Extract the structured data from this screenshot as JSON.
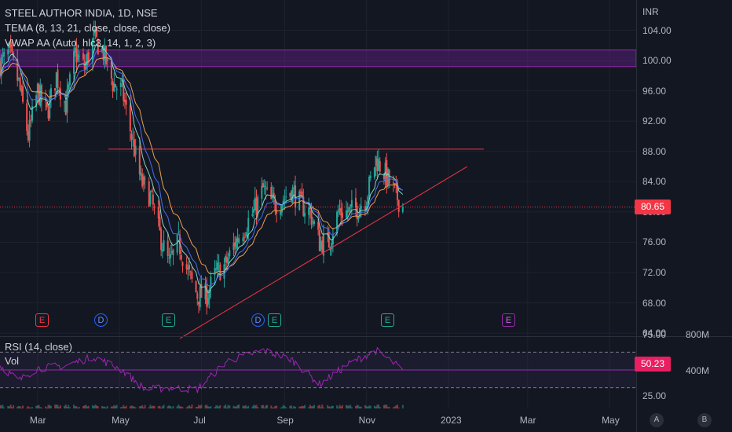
{
  "legend": {
    "symbol_line": "STEEL AUTHOR INDIA, 1D, NSE",
    "tema_line": "TEMA (8, 13, 21, close, close, close)",
    "vwap_line": "VWAP AA (Auto, hlc3, 14, 1, 2, 3)",
    "rsi_line": "RSI (14, close)",
    "vol_line": "Vol"
  },
  "currency": "INR",
  "price_axis": {
    "ticks": [
      "104.00",
      "100.00",
      "96.00",
      "92.00",
      "88.00",
      "84.00",
      "80.00",
      "76.00",
      "72.00",
      "68.00",
      "64.00"
    ],
    "min": 63.6,
    "max": 108.0
  },
  "last_price": "80.65",
  "rsi_axis": {
    "ticks": [
      "75.00",
      "25.00"
    ],
    "value": "50.23"
  },
  "volume_axis": {
    "ticks": [
      "800M",
      "400M"
    ]
  },
  "time_axis": {
    "labels": [
      "Mar",
      "May",
      "Jul",
      "Sep",
      "Nov",
      "2023",
      "Mar",
      "May"
    ]
  },
  "events": [
    {
      "letter": "E",
      "kind": "earnings-past"
    },
    {
      "letter": "D",
      "kind": "dividend"
    },
    {
      "letter": "E",
      "kind": "earnings"
    },
    {
      "letter": "D",
      "kind": "dividend"
    },
    {
      "letter": "E",
      "kind": "earnings"
    },
    {
      "letter": "E",
      "kind": "earnings"
    },
    {
      "letter": "E",
      "kind": "earnings-future"
    }
  ],
  "bottom_buttons": {
    "a": "A",
    "b": "B"
  },
  "colors": {
    "up": "#26a69a",
    "down": "#ef5350",
    "tema": "#7dd6c4",
    "vwap": "#e9a050",
    "vwap2": "#4a6cf0",
    "rsi": "#9c27b0",
    "zone": "#7b1fa2",
    "trend": "#f23645"
  },
  "chart_data": {
    "type": "candlestick",
    "x_start": "2022-02-01",
    "x_end": "2023-05-15",
    "last_bar": "2022-11-28",
    "ylim": [
      63.6,
      108.0
    ],
    "resistance_zone": [
      99.2,
      101.4
    ],
    "horizontal_level": 88.3,
    "trendline": {
      "from": {
        "date": "2022-06-15",
        "price": 63.3
      },
      "to": {
        "date": "2023-01-15",
        "price": 86.0
      }
    },
    "close_path": [
      {
        "date": "2022-02-01",
        "price": 99.5
      },
      {
        "date": "2022-02-08",
        "price": 101
      },
      {
        "date": "2022-02-15",
        "price": 97
      },
      {
        "date": "2022-02-22",
        "price": 90
      },
      {
        "date": "2022-03-01",
        "price": 96
      },
      {
        "date": "2022-03-08",
        "price": 93
      },
      {
        "date": "2022-03-15",
        "price": 98
      },
      {
        "date": "2022-03-22",
        "price": 94
      },
      {
        "date": "2022-03-29",
        "price": 101
      },
      {
        "date": "2022-04-05",
        "price": 99
      },
      {
        "date": "2022-04-12",
        "price": 103
      },
      {
        "date": "2022-04-19",
        "price": 101
      },
      {
        "date": "2022-04-26",
        "price": 97
      },
      {
        "date": "2022-05-03",
        "price": 96
      },
      {
        "date": "2022-05-10",
        "price": 90
      },
      {
        "date": "2022-05-17",
        "price": 84
      },
      {
        "date": "2022-05-24",
        "price": 82
      },
      {
        "date": "2022-05-31",
        "price": 77
      },
      {
        "date": "2022-06-07",
        "price": 73
      },
      {
        "date": "2022-06-14",
        "price": 76
      },
      {
        "date": "2022-06-21",
        "price": 72
      },
      {
        "date": "2022-06-28",
        "price": 69
      },
      {
        "date": "2022-07-05",
        "price": 69
      },
      {
        "date": "2022-07-12",
        "price": 72
      },
      {
        "date": "2022-07-19",
        "price": 73
      },
      {
        "date": "2022-07-26",
        "price": 76
      },
      {
        "date": "2022-08-02",
        "price": 78
      },
      {
        "date": "2022-08-09",
        "price": 80
      },
      {
        "date": "2022-08-16",
        "price": 83
      },
      {
        "date": "2022-08-23",
        "price": 81
      },
      {
        "date": "2022-08-30",
        "price": 81.5
      },
      {
        "date": "2022-09-06",
        "price": 83
      },
      {
        "date": "2022-09-13",
        "price": 81
      },
      {
        "date": "2022-09-20",
        "price": 80
      },
      {
        "date": "2022-09-27",
        "price": 76
      },
      {
        "date": "2022-10-04",
        "price": 76
      },
      {
        "date": "2022-10-11",
        "price": 80
      },
      {
        "date": "2022-10-18",
        "price": 80
      },
      {
        "date": "2022-10-25",
        "price": 80.5
      },
      {
        "date": "2022-11-01",
        "price": 82
      },
      {
        "date": "2022-11-08",
        "price": 87
      },
      {
        "date": "2022-11-15",
        "price": 85
      },
      {
        "date": "2022-11-22",
        "price": 82.5
      },
      {
        "date": "2022-11-28",
        "price": 80.65
      }
    ],
    "rsi_path": [
      {
        "date": "2022-02-01",
        "value": 55
      },
      {
        "date": "2022-02-15",
        "value": 38
      },
      {
        "date": "2022-03-01",
        "value": 52
      },
      {
        "date": "2022-03-22",
        "value": 55
      },
      {
        "date": "2022-04-12",
        "value": 65
      },
      {
        "date": "2022-05-03",
        "value": 50
      },
      {
        "date": "2022-05-20",
        "value": 28
      },
      {
        "date": "2022-06-07",
        "value": 30
      },
      {
        "date": "2022-06-28",
        "value": 28
      },
      {
        "date": "2022-07-20",
        "value": 60
      },
      {
        "date": "2022-08-16",
        "value": 72
      },
      {
        "date": "2022-09-06",
        "value": 62
      },
      {
        "date": "2022-09-27",
        "value": 34
      },
      {
        "date": "2022-10-18",
        "value": 56
      },
      {
        "date": "2022-11-08",
        "value": 72
      },
      {
        "date": "2022-11-28",
        "value": 50.23
      }
    ]
  }
}
